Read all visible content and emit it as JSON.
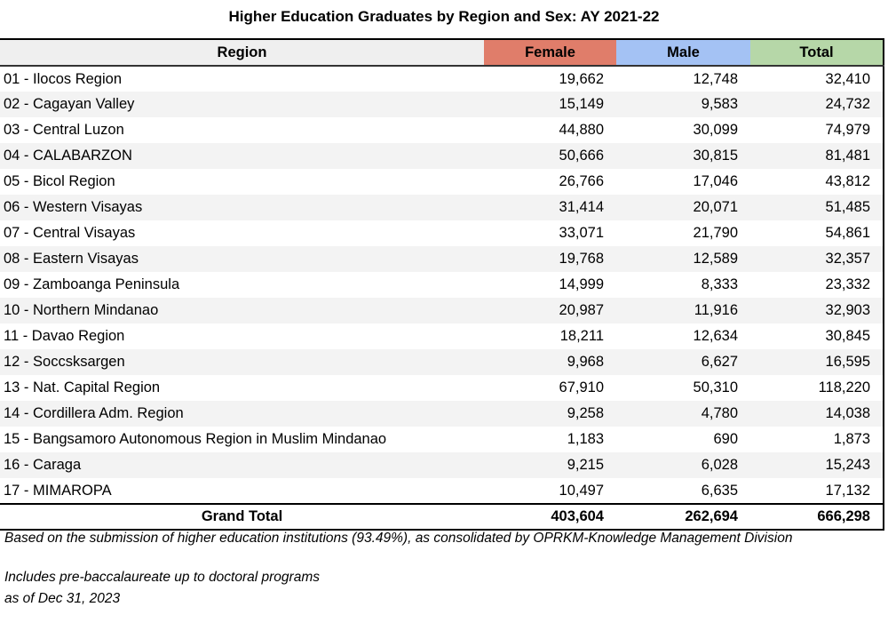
{
  "title": "Higher Education Graduates by Region and Sex: AY 2021-22",
  "colors": {
    "female": "#e07d6a",
    "male": "#a4c2f4",
    "total": "#b6d7a8"
  },
  "chart_data": {
    "type": "table",
    "title": "Higher Education Graduates by Region and Sex: AY 2021-22",
    "columns": [
      "Region",
      "Female",
      "Male",
      "Total"
    ],
    "rows": [
      [
        "01 - Ilocos Region",
        "19,662",
        "12,748",
        "32,410"
      ],
      [
        "02 - Cagayan Valley",
        "15,149",
        "9,583",
        "24,732"
      ],
      [
        "03 - Central Luzon",
        "44,880",
        "30,099",
        "74,979"
      ],
      [
        "04 - CALABARZON",
        "50,666",
        "30,815",
        "81,481"
      ],
      [
        "05 - Bicol Region",
        "26,766",
        "17,046",
        "43,812"
      ],
      [
        "06 - Western Visayas",
        "31,414",
        "20,071",
        "51,485"
      ],
      [
        "07 - Central Visayas",
        "33,071",
        "21,790",
        "54,861"
      ],
      [
        "08 - Eastern Visayas",
        "19,768",
        "12,589",
        "32,357"
      ],
      [
        "09 - Zamboanga Peninsula",
        "14,999",
        "8,333",
        "23,332"
      ],
      [
        "10 - Northern Mindanao",
        "20,987",
        "11,916",
        "32,903"
      ],
      [
        "11 - Davao Region",
        "18,211",
        "12,634",
        "30,845"
      ],
      [
        "12 - Soccsksargen",
        "9,968",
        "6,627",
        "16,595"
      ],
      [
        "13 - Nat. Capital Region",
        "67,910",
        "50,310",
        "118,220"
      ],
      [
        "14 - Cordillera Adm. Region",
        "9,258",
        "4,780",
        "14,038"
      ],
      [
        "15 - Bangsamoro Autonomous Region in Muslim Mindanao",
        "1,183",
        "690",
        "1,873"
      ],
      [
        "16 - Caraga",
        "9,215",
        "6,028",
        "15,243"
      ],
      [
        "17 - MIMAROPA",
        "10,497",
        "6,635",
        "17,132"
      ]
    ],
    "total_row": [
      "Grand Total",
      "403,604",
      "262,694",
      "666,298"
    ]
  },
  "notes": [
    "Based on the submission of higher education institutions (93.49%), as consolidated by OPRKM-Knowledge Management Division",
    "Includes pre-baccalaureate up to doctoral programs",
    "as of Dec 31, 2023"
  ]
}
